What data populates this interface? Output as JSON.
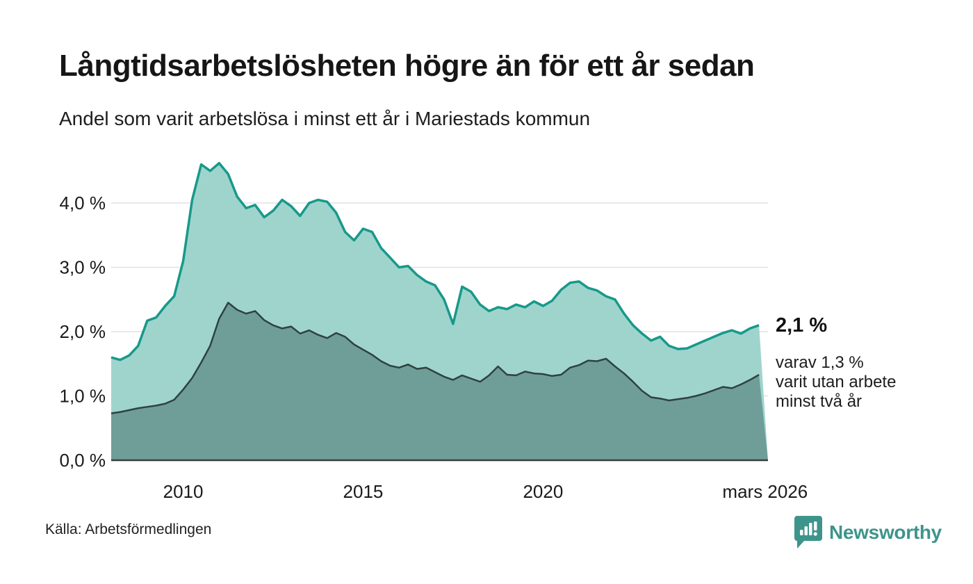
{
  "header": {
    "title": "Långtidsarbetslösheten högre än för ett år sedan",
    "subtitle": "Andel som varit arbetslösa i minst ett år i Mariestads kommun"
  },
  "annotation": {
    "value_label": "2,1 %",
    "detail": "varav 1,3 %\nvarit utan arbete\nminst två år"
  },
  "footer": {
    "source": "Källa: Arbetsförmedlingen",
    "brand": "Newsworthy"
  },
  "colors": {
    "series1_fill": "#9fd4cd",
    "series1_stroke": "#17998a",
    "series2_fill": "#6f9e99",
    "series2_stroke": "#2e423f",
    "gridline": "#e2e2e2",
    "baseline": "#3d3d3d",
    "text": "#1a1a1a",
    "brand_teal": "#3d948b"
  },
  "chart_data": {
    "type": "area",
    "title": "Långtidsarbetslösheten högre än för ett år sedan",
    "subtitle": "Andel som varit arbetslösa i minst ett år i Mariestads kommun",
    "unit": "%",
    "x_start_year": 2008.0,
    "x_step_years": 0.25,
    "x_end_year": 2026.25,
    "grid": true,
    "ylim": [
      0,
      4.75
    ],
    "y_ticks": [
      {
        "value": 0,
        "label": "0,0 %"
      },
      {
        "value": 1,
        "label": "1,0 %"
      },
      {
        "value": 2,
        "label": "2,0 %"
      },
      {
        "value": 3,
        "label": "3,0 %"
      },
      {
        "value": 4,
        "label": "4,0 %"
      }
    ],
    "x_ticks": [
      {
        "year": 2010,
        "label": "2010"
      },
      {
        "year": 2015,
        "label": "2015"
      },
      {
        "year": 2020,
        "label": "2020"
      },
      {
        "year": 2026.17,
        "label": "mars 2026"
      }
    ],
    "series": [
      {
        "name": "Andel arbetslösa minst ett år",
        "last_value": 2.1,
        "values": [
          1.6,
          1.56,
          1.63,
          1.78,
          2.17,
          2.22,
          2.4,
          2.55,
          3.1,
          4.05,
          4.6,
          4.5,
          4.62,
          4.45,
          4.1,
          3.92,
          3.97,
          3.78,
          3.88,
          4.05,
          3.95,
          3.8,
          4.0,
          4.05,
          4.02,
          3.85,
          3.55,
          3.42,
          3.6,
          3.55,
          3.3,
          3.15,
          3.0,
          3.02,
          2.88,
          2.78,
          2.72,
          2.5,
          2.12,
          2.7,
          2.62,
          2.42,
          2.32,
          2.38,
          2.35,
          2.42,
          2.38,
          2.47,
          2.4,
          2.48,
          2.65,
          2.76,
          2.78,
          2.68,
          2.64,
          2.55,
          2.5,
          2.28,
          2.1,
          1.97,
          1.86,
          1.92,
          1.78,
          1.73,
          1.74,
          1.8,
          1.86,
          1.92,
          1.98,
          2.02,
          1.97,
          2.05,
          2.1
        ]
      },
      {
        "name": "Varav utan arbete minst två år",
        "last_value": 1.3,
        "values": [
          0.73,
          0.75,
          0.78,
          0.81,
          0.83,
          0.85,
          0.88,
          0.94,
          1.1,
          1.28,
          1.52,
          1.78,
          2.2,
          2.45,
          2.34,
          2.28,
          2.32,
          2.18,
          2.1,
          2.05,
          2.08,
          1.97,
          2.02,
          1.95,
          1.9,
          1.98,
          1.92,
          1.8,
          1.72,
          1.64,
          1.54,
          1.47,
          1.44,
          1.49,
          1.42,
          1.44,
          1.37,
          1.3,
          1.25,
          1.32,
          1.27,
          1.22,
          1.32,
          1.46,
          1.33,
          1.32,
          1.38,
          1.35,
          1.34,
          1.31,
          1.33,
          1.44,
          1.48,
          1.55,
          1.54,
          1.58,
          1.46,
          1.35,
          1.22,
          1.08,
          0.98,
          0.96,
          0.93,
          0.95,
          0.97,
          1.0,
          1.04,
          1.09,
          1.14,
          1.12,
          1.18,
          1.25,
          1.33
        ]
      }
    ]
  }
}
